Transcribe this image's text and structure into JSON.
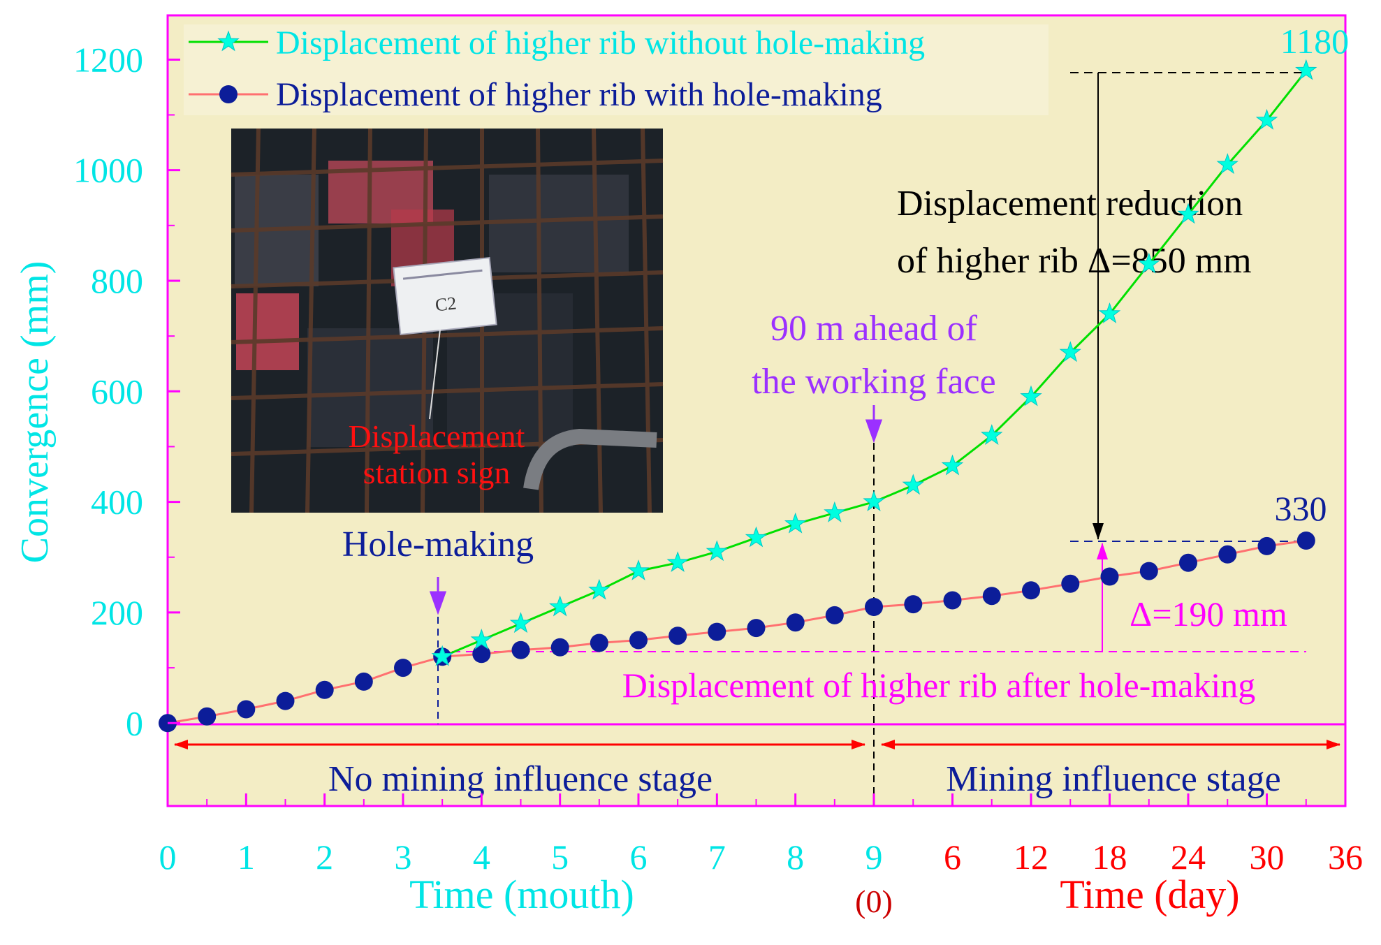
{
  "chart_data": {
    "type": "line",
    "ylabel": "Convergence (mm)",
    "ylim": [
      -150,
      1280
    ],
    "yticks": [
      0,
      200,
      400,
      600,
      800,
      1000,
      1200
    ],
    "x_axis_month": {
      "label": "Time (mouth)",
      "ticks": [
        "0",
        "1",
        "2",
        "3",
        "4",
        "5",
        "6",
        "7",
        "8",
        "9"
      ],
      "range": [
        0,
        9
      ]
    },
    "x_axis_day": {
      "label": "Time (day)",
      "zero_label": "(0)",
      "ticks": [
        "6",
        "12",
        "18",
        "24",
        "30",
        "36"
      ],
      "range": [
        0,
        36
      ]
    },
    "colors": {
      "background": "#f3edc5",
      "frame": "#ff00ff",
      "month_axis": "#00ffff",
      "day_axis": "#ff0000",
      "series_without": "#00e000",
      "series_without_marker": "#00ffe0",
      "series_with_line": "#ff7070",
      "series_with_marker": "#0c1d99"
    },
    "series": [
      {
        "name": "Displacement of higher rib without hole-making",
        "marker": "star",
        "points": [
          {
            "x": 3.5,
            "y": 120,
            "axis": "month"
          },
          {
            "x": 4,
            "y": 150,
            "axis": "month"
          },
          {
            "x": 4.5,
            "y": 180,
            "axis": "month"
          },
          {
            "x": 5,
            "y": 210,
            "axis": "month"
          },
          {
            "x": 5.5,
            "y": 240,
            "axis": "month"
          },
          {
            "x": 6,
            "y": 275,
            "axis": "month"
          },
          {
            "x": 6.5,
            "y": 290,
            "axis": "month"
          },
          {
            "x": 7,
            "y": 310,
            "axis": "month"
          },
          {
            "x": 7.5,
            "y": 335,
            "axis": "month"
          },
          {
            "x": 8,
            "y": 360,
            "axis": "month"
          },
          {
            "x": 8.5,
            "y": 380,
            "axis": "month"
          },
          {
            "x": 0,
            "y": 400,
            "axis": "day"
          },
          {
            "x": 3,
            "y": 430,
            "axis": "day"
          },
          {
            "x": 6,
            "y": 465,
            "axis": "day"
          },
          {
            "x": 9,
            "y": 520,
            "axis": "day"
          },
          {
            "x": 12,
            "y": 590,
            "axis": "day"
          },
          {
            "x": 15,
            "y": 670,
            "axis": "day"
          },
          {
            "x": 18,
            "y": 740,
            "axis": "day"
          },
          {
            "x": 21,
            "y": 830,
            "axis": "day"
          },
          {
            "x": 24,
            "y": 920,
            "axis": "day"
          },
          {
            "x": 27,
            "y": 1010,
            "axis": "day"
          },
          {
            "x": 30,
            "y": 1090,
            "axis": "day"
          },
          {
            "x": 33,
            "y": 1180,
            "axis": "day"
          }
        ]
      },
      {
        "name": "Displacement of higher rib with hole-making",
        "marker": "circle",
        "points": [
          {
            "x": 0,
            "y": 0,
            "axis": "month"
          },
          {
            "x": 0.5,
            "y": 12,
            "axis": "month"
          },
          {
            "x": 1,
            "y": 25,
            "axis": "month"
          },
          {
            "x": 1.5,
            "y": 40,
            "axis": "month"
          },
          {
            "x": 2,
            "y": 60,
            "axis": "month"
          },
          {
            "x": 2.5,
            "y": 75,
            "axis": "month"
          },
          {
            "x": 3,
            "y": 100,
            "axis": "month"
          },
          {
            "x": 3.5,
            "y": 120,
            "axis": "month"
          },
          {
            "x": 4,
            "y": 125,
            "axis": "month"
          },
          {
            "x": 4.5,
            "y": 132,
            "axis": "month"
          },
          {
            "x": 5,
            "y": 137,
            "axis": "month"
          },
          {
            "x": 5.5,
            "y": 145,
            "axis": "month"
          },
          {
            "x": 6,
            "y": 150,
            "axis": "month"
          },
          {
            "x": 6.5,
            "y": 158,
            "axis": "month"
          },
          {
            "x": 7,
            "y": 165,
            "axis": "month"
          },
          {
            "x": 7.5,
            "y": 172,
            "axis": "month"
          },
          {
            "x": 8,
            "y": 182,
            "axis": "month"
          },
          {
            "x": 8.5,
            "y": 195,
            "axis": "month"
          },
          {
            "x": 0,
            "y": 210,
            "axis": "day"
          },
          {
            "x": 3,
            "y": 215,
            "axis": "day"
          },
          {
            "x": 6,
            "y": 222,
            "axis": "day"
          },
          {
            "x": 9,
            "y": 230,
            "axis": "day"
          },
          {
            "x": 12,
            "y": 240,
            "axis": "day"
          },
          {
            "x": 15,
            "y": 252,
            "axis": "day"
          },
          {
            "x": 18,
            "y": 265,
            "axis": "day"
          },
          {
            "x": 21,
            "y": 275,
            "axis": "day"
          },
          {
            "x": 24,
            "y": 290,
            "axis": "day"
          },
          {
            "x": 27,
            "y": 305,
            "axis": "day"
          },
          {
            "x": 30,
            "y": 320,
            "axis": "day"
          },
          {
            "x": 33,
            "y": 330,
            "axis": "day"
          }
        ]
      }
    ],
    "annotations": {
      "value_1180": "1180",
      "value_330": "330",
      "reduction_line1": "Displacement reduction",
      "reduction_line2": "of higher rib Δ=850 mm",
      "ahead_line1": "90 m ahead of",
      "ahead_line2": "the working face",
      "hole_making": "Hole-making",
      "delta_190": "Δ=190 mm",
      "after_hole": "Displacement of higher rib after hole-making",
      "stage_no_mining": "No mining influence stage",
      "stage_mining": "Mining influence stage",
      "photo_caption_line1": "Displacement",
      "photo_caption_line2": "station sign",
      "photo_sign": "C2"
    },
    "legend_position": "top-left",
    "grid": false
  }
}
